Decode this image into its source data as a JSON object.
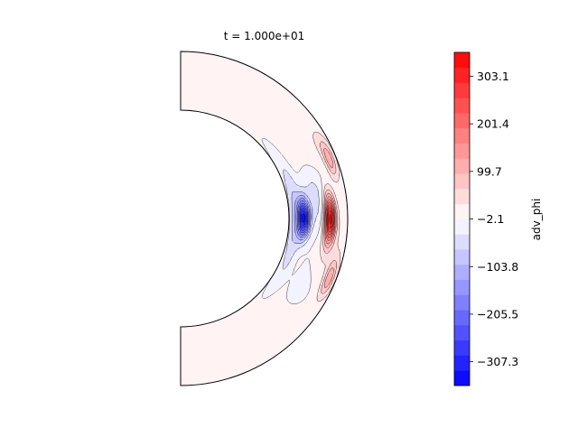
{
  "chart_data": {
    "type": "heatmap",
    "title": "t = 1.000e+01",
    "geometry": "meridional half-annulus (spherical shell), equator at right",
    "colormap": "bwr",
    "contour_levels": 22,
    "colorbar": {
      "label": "adv_phi",
      "min": -358.15,
      "max": 354.25,
      "ticks": [
        -307.3,
        -205.5,
        -103.8,
        -2.1,
        99.7,
        201.4,
        303.1
      ],
      "tick_labels": [
        "−307.3",
        "−205.5",
        "−103.8",
        "−2.1",
        "99.7",
        "201.4",
        "303.1"
      ]
    },
    "features": [
      {
        "name": "negative core",
        "value": -330,
        "latitude_deg": 0,
        "radial_fraction": 0.25
      },
      {
        "name": "positive core",
        "value": 330,
        "latitude_deg": 0,
        "radial_fraction": 0.7
      },
      {
        "name": "outer lobe north",
        "value": 110,
        "latitude_deg": 22,
        "radial_fraction": 0.88
      },
      {
        "name": "outer lobe south",
        "value": 110,
        "latitude_deg": -22,
        "radial_fraction": 0.88
      },
      {
        "name": "inner band",
        "value": -85,
        "latitude_deg": 0,
        "radial_fraction": 0.1
      }
    ]
  }
}
